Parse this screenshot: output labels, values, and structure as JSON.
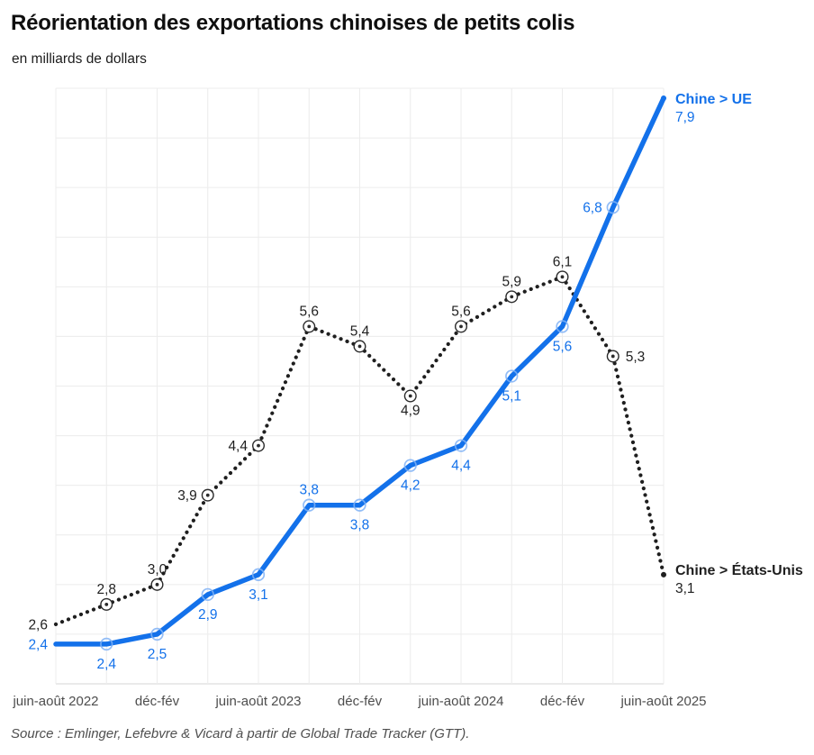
{
  "header": {
    "title": "Réorientation des exportations chinoises de petits colis",
    "subtitle": "en milliards de dollars"
  },
  "chart_data": {
    "type": "line",
    "title": "Réorientation des exportations chinoises de petits colis",
    "subtitle": "en milliards de dollars",
    "unit": "milliards de dollars",
    "n_points": 13,
    "x_ticks": [
      {
        "pos": 0,
        "label": "juin-août 2022"
      },
      {
        "pos": 2,
        "label": "déc-fév"
      },
      {
        "pos": 4,
        "label": "juin-août 2023"
      },
      {
        "pos": 6,
        "label": "déc-fév"
      },
      {
        "pos": 8,
        "label": "juin-août 2024"
      },
      {
        "pos": 10,
        "label": "déc-fév"
      },
      {
        "pos": 12,
        "label": "juin-août 2025"
      }
    ],
    "ylim": [
      2.0,
      8.0
    ],
    "grid_step": 0.5,
    "grid": true,
    "legend_position": "line-ends-right",
    "series": [
      {
        "name": "Chine > UE",
        "color": "#1371ea",
        "marker_ring_color": "#7fb2f6",
        "line_style": "solid",
        "values": [
          2.4,
          2.4,
          2.5,
          2.9,
          3.1,
          3.8,
          3.8,
          4.2,
          4.4,
          5.1,
          5.6,
          6.8,
          7.9
        ],
        "labels": [
          "2,4",
          "2,4",
          "2,5",
          "2,9",
          "3,1",
          "3,8",
          "3,8",
          "4,2",
          "4,4",
          "5,1",
          "5,6",
          "6,8",
          "7,9"
        ],
        "label_pos": [
          "left",
          "below",
          "below",
          "below",
          "below",
          "above",
          "below",
          "below",
          "below",
          "below",
          "below",
          "left",
          "end"
        ],
        "end_value_label": "7,9"
      },
      {
        "name": "Chine > États-Unis",
        "color": "#1f1f1f",
        "marker_ring_color": "#2b2b2b",
        "line_style": "dotted",
        "values": [
          2.6,
          2.8,
          3.0,
          3.9,
          4.4,
          5.6,
          5.4,
          4.9,
          5.6,
          5.9,
          6.1,
          5.3,
          3.1
        ],
        "labels": [
          "2,6",
          "2,8",
          "3,0",
          "3,9",
          "4,4",
          "5,6",
          "5,4",
          "4,9",
          "5,6",
          "5,9",
          "6,1",
          "5,3",
          "3,1"
        ],
        "label_pos": [
          "left",
          "above",
          "above",
          "left",
          "left",
          "above",
          "above",
          "below",
          "above",
          "above",
          "above",
          "right",
          "end"
        ],
        "end_value_label": "3,1"
      }
    ],
    "colors": {
      "grid": "#ececec",
      "axis": "#d6d6d6",
      "tick_label": "#4d4d4d"
    }
  },
  "footer": {
    "source": "Source : Emlinger, Lefebvre & Vicard à partir de Global Trade Tracker (GTT)."
  }
}
